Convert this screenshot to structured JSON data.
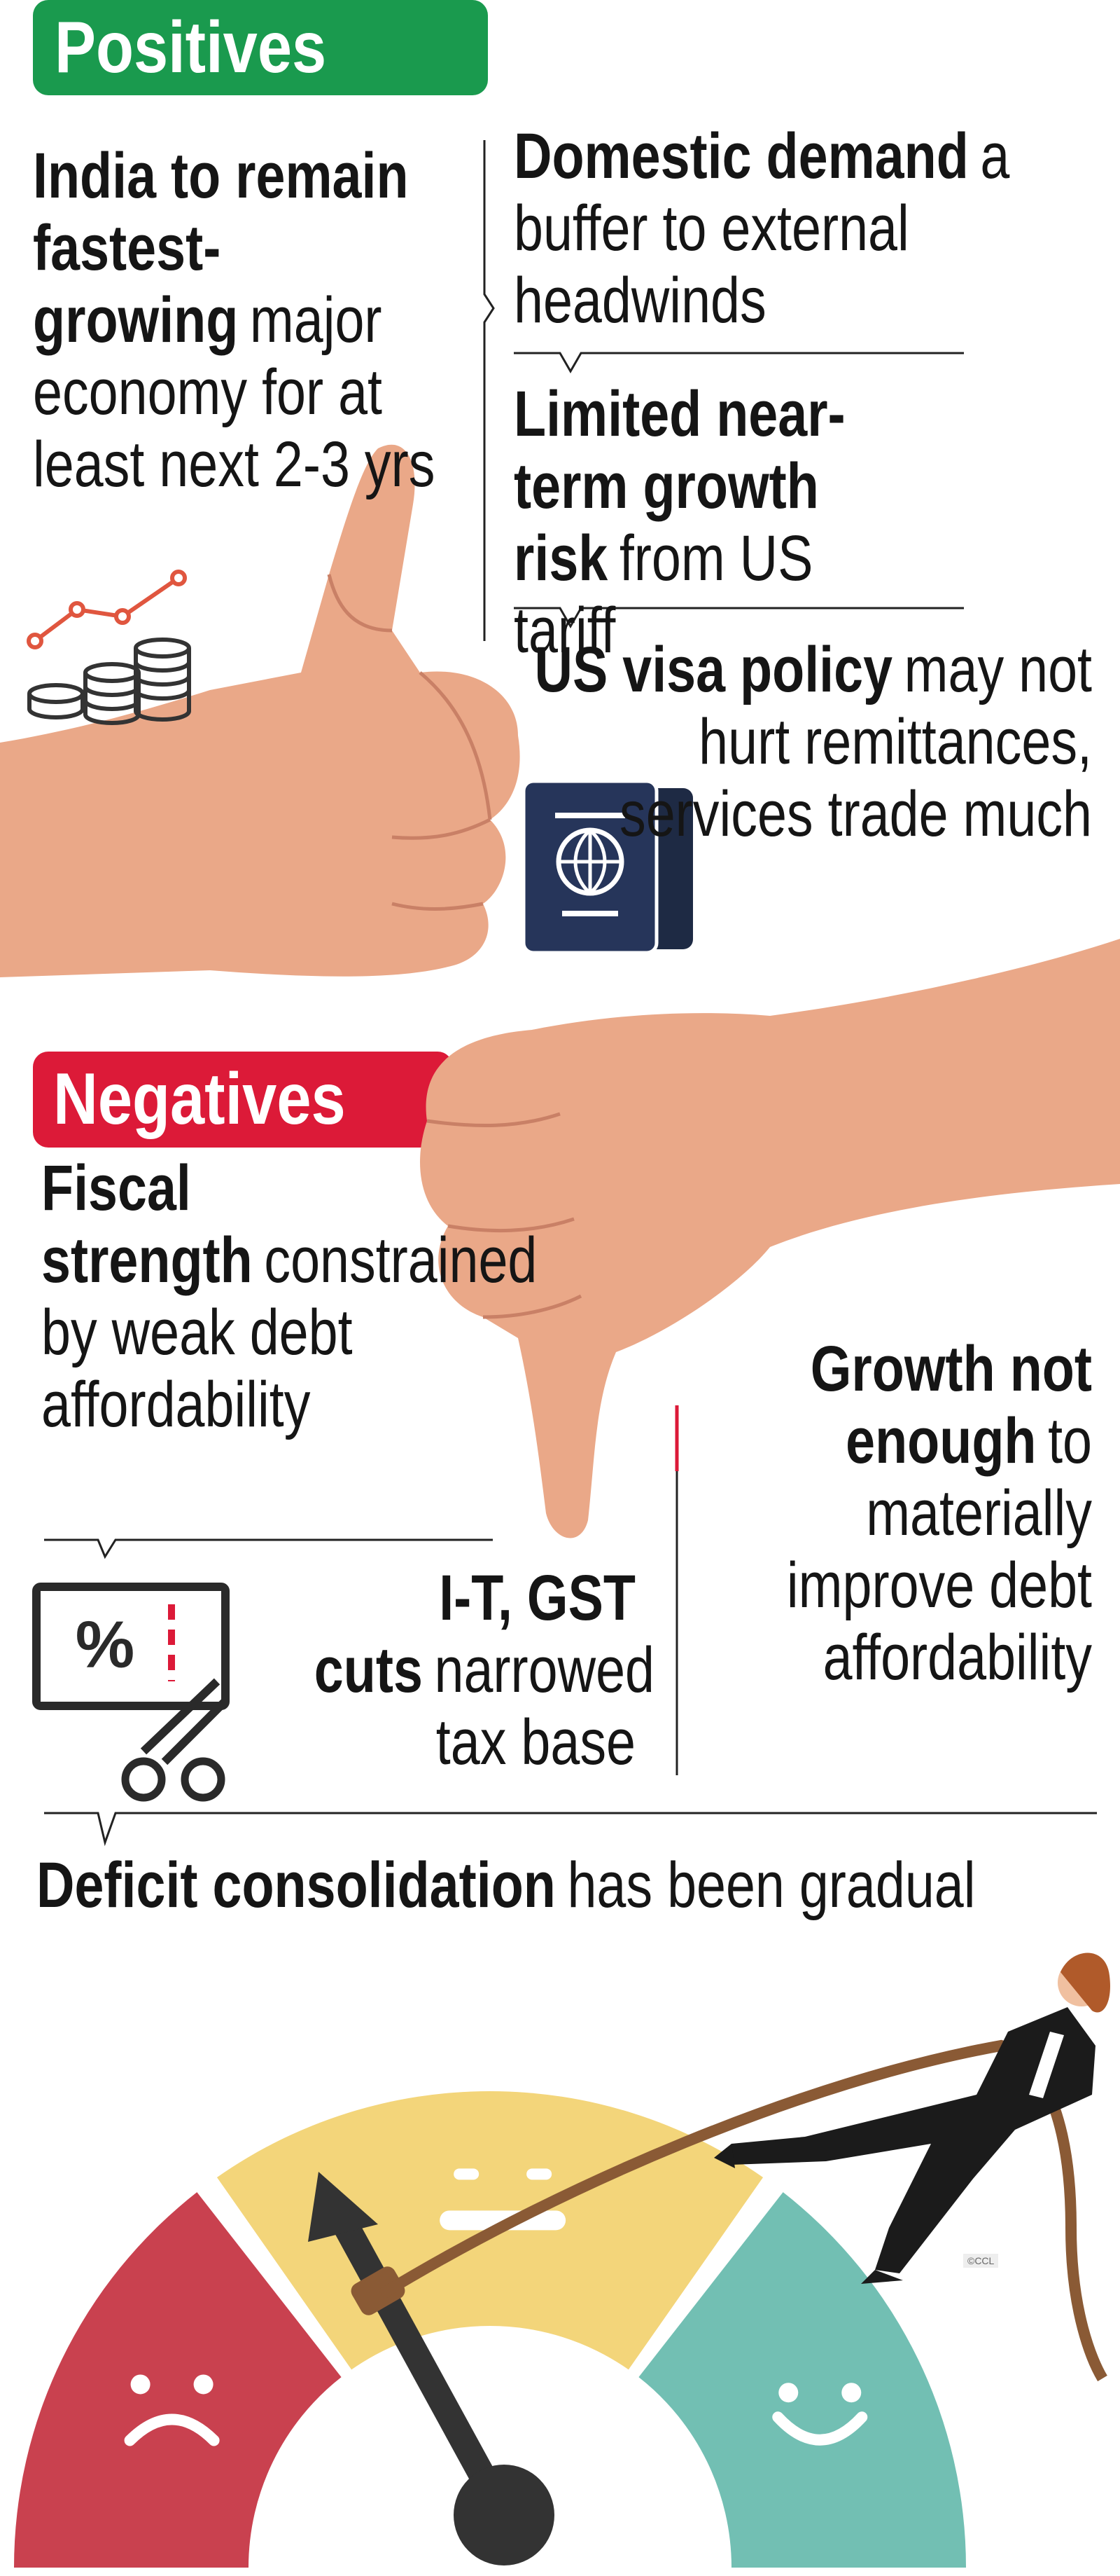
{
  "positives": {
    "heading": "Positives",
    "items": [
      {
        "bold": "India to remain fastest-growing",
        "text": "major economy for at least next 2-3 yrs"
      },
      {
        "bold": "Domestic demand",
        "text": "a buffer to external headwinds"
      },
      {
        "bold": "Limited near-term growth risk",
        "text": "from US tariff"
      },
      {
        "bold": "US visa policy",
        "text": "may not hurt remittances, services trade much"
      }
    ]
  },
  "negatives": {
    "heading": "Negatives",
    "items": [
      {
        "bold": "Fiscal strength",
        "text": "constrained by weak debt affordability"
      },
      {
        "bold": "I-T, GST cuts",
        "text": "narrowed tax base"
      },
      {
        "bold": "Growth not enough",
        "text": "to materially improve debt affordability"
      }
    ]
  },
  "footer": {
    "bold": "Deficit consolidation",
    "text": "has been gradual"
  },
  "credit": "©CCL"
}
